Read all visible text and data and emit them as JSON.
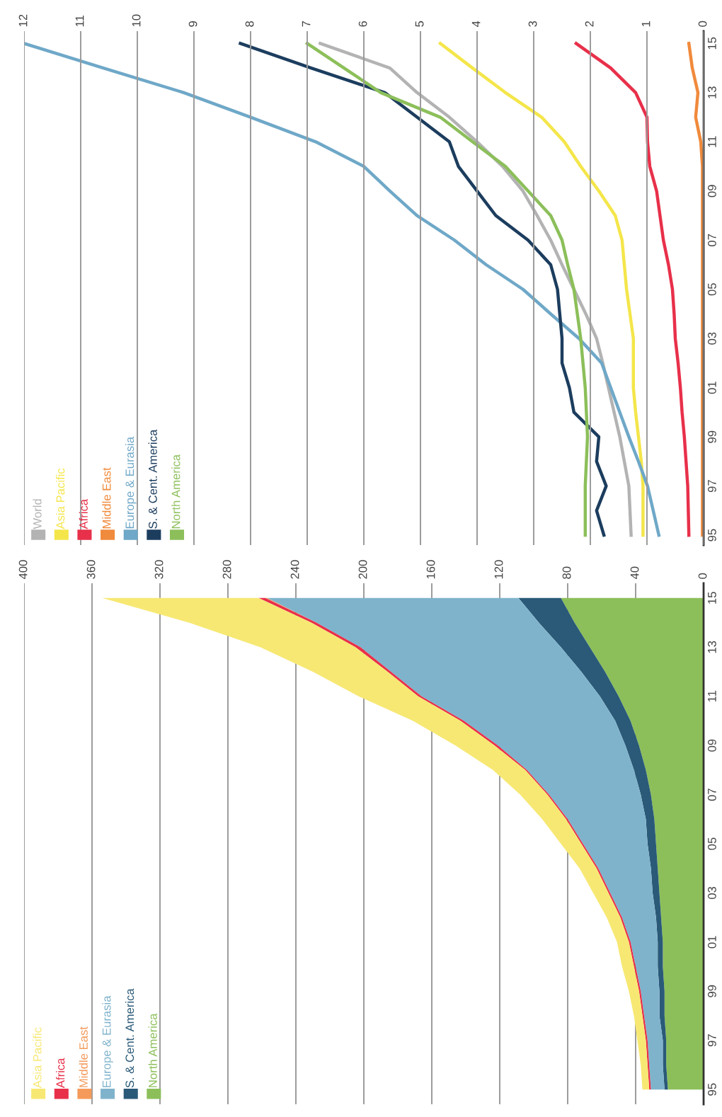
{
  "chart_data": [
    {
      "type": "area",
      "orientation": "horizontal",
      "stacked": true,
      "legend": "bottom left",
      "grid": "x",
      "x": [
        1995,
        1996,
        1997,
        1998,
        1999,
        2000,
        2001,
        2002,
        2003,
        2004,
        2005,
        2006,
        2007,
        2008,
        2009,
        2010,
        2011,
        2012,
        2013,
        2014,
        2015
      ],
      "xlim": [
        400,
        0
      ],
      "xticks": [
        0,
        40,
        80,
        120,
        160,
        200,
        240,
        280,
        320,
        360,
        400
      ],
      "ylim": [
        1994.4,
        2015.6
      ],
      "yticks": [
        {
          "value": 1995,
          "label": "95"
        },
        {
          "value": 1997,
          "label": "97"
        },
        {
          "value": 1999,
          "label": "99"
        },
        {
          "value": 2001,
          "label": "01"
        },
        {
          "value": 2003,
          "label": "03"
        },
        {
          "value": 2005,
          "label": "05"
        },
        {
          "value": 2007,
          "label": "07"
        },
        {
          "value": 2009,
          "label": "09"
        },
        {
          "value": 2011,
          "label": "11"
        },
        {
          "value": 2013,
          "label": "13"
        },
        {
          "value": 2015,
          "label": "15"
        }
      ],
      "series": [
        {
          "name": "North America",
          "color": "#8cbf5a",
          "values": [
            21,
            22,
            22,
            23,
            23,
            24,
            24,
            25,
            26,
            27,
            28,
            29,
            31,
            34,
            38,
            43,
            50,
            58,
            67,
            76,
            84
          ]
        },
        {
          "name": "S. & Cent. America",
          "color": "#2a5a78",
          "values": [
            2,
            2,
            2,
            3,
            3,
            3,
            3,
            3,
            4,
            4,
            5,
            5,
            6,
            7,
            8,
            9,
            11,
            14,
            17,
            21,
            25
          ]
        },
        {
          "name": "Europe & Eurasia",
          "color": "#7fb3cc",
          "values": [
            8,
            8,
            9,
            9,
            11,
            13,
            16,
            20,
            25,
            31,
            38,
            46,
            54,
            63,
            75,
            89,
            105,
            112,
            118,
            131,
            148
          ]
        },
        {
          "name": "Middle East",
          "color": "#f59a5a",
          "values": [
            0,
            0,
            0,
            0,
            0,
            0,
            0,
            0,
            0,
            0,
            0,
            0,
            0,
            0,
            0,
            0,
            0,
            0,
            0,
            0,
            1
          ]
        },
        {
          "name": "Africa",
          "color": "#e8304a",
          "values": [
            1,
            1,
            1,
            1,
            1,
            1,
            1,
            1,
            1,
            1,
            1,
            1,
            1,
            1,
            2,
            2,
            2,
            2,
            3,
            3,
            4
          ]
        },
        {
          "name": "Asia Pacific",
          "color": "#f7e873",
          "values": [
            4,
            4,
            5,
            5,
            6,
            7,
            7,
            8,
            9,
            10,
            12,
            14,
            16,
            19,
            23,
            28,
            35,
            44,
            56,
            72,
            92
          ]
        }
      ]
    },
    {
      "type": "line",
      "orientation": "horizontal",
      "legend": "bottom left",
      "grid": "x",
      "x": [
        1995,
        1996,
        1997,
        1998,
        1999,
        2000,
        2001,
        2002,
        2003,
        2004,
        2005,
        2006,
        2007,
        2008,
        2009,
        2010,
        2011,
        2012,
        2013,
        2014,
        2015
      ],
      "xlim": [
        12,
        0
      ],
      "xticks": [
        0,
        1,
        2,
        3,
        4,
        5,
        6,
        7,
        8,
        9,
        10,
        11,
        12
      ],
      "ylim": [
        1994.6,
        2015.5
      ],
      "yticks": [
        {
          "value": 1995,
          "label": "95"
        },
        {
          "value": 1997,
          "label": "97"
        },
        {
          "value": 1999,
          "label": "99"
        },
        {
          "value": 2001,
          "label": "01"
        },
        {
          "value": 2003,
          "label": "03"
        },
        {
          "value": 2005,
          "label": "05"
        },
        {
          "value": 2007,
          "label": "07"
        },
        {
          "value": 2009,
          "label": "09"
        },
        {
          "value": 2011,
          "label": "11"
        },
        {
          "value": 2013,
          "label": "13"
        },
        {
          "value": 2015,
          "label": "15"
        }
      ],
      "series": [
        {
          "name": "World",
          "color": "#b3b3b3",
          "values": [
            1.28,
            1.3,
            1.32,
            1.4,
            1.48,
            1.58,
            1.68,
            1.78,
            1.89,
            2.08,
            2.29,
            2.5,
            2.7,
            2.94,
            3.19,
            3.55,
            4.0,
            4.49,
            5.06,
            5.54,
            6.77
          ]
        },
        {
          "name": "Asia Pacific",
          "color": "#f4e64a",
          "values": [
            1.07,
            1.07,
            1.07,
            1.1,
            1.15,
            1.2,
            1.24,
            1.24,
            1.24,
            1.3,
            1.36,
            1.4,
            1.44,
            1.56,
            1.85,
            2.17,
            2.46,
            2.86,
            3.5,
            4.08,
            4.65
          ]
        },
        {
          "name": "Africa",
          "color": "#e8304a",
          "values": [
            0.26,
            0.27,
            0.28,
            0.31,
            0.34,
            0.38,
            0.41,
            0.45,
            0.5,
            0.52,
            0.55,
            0.62,
            0.71,
            0.77,
            0.83,
            0.95,
            0.99,
            1.0,
            1.2,
            1.64,
            2.25
          ]
        },
        {
          "name": "Middle East",
          "color": "#f08a3c",
          "values": [
            0.02,
            0.02,
            0.02,
            0.02,
            0.02,
            0.02,
            0.02,
            0.02,
            0.02,
            0.02,
            0.02,
            0.02,
            0.02,
            0.02,
            0.02,
            0.02,
            0.05,
            0.14,
            0.1,
            0.2,
            0.26
          ]
        },
        {
          "name": "Europe & Eurasia",
          "color": "#6fa8c8",
          "values": [
            0.79,
            0.89,
            0.99,
            1.15,
            1.32,
            1.48,
            1.64,
            1.8,
            2.2,
            2.7,
            3.19,
            3.84,
            4.4,
            5.06,
            5.54,
            6.0,
            6.85,
            8.0,
            9.18,
            10.6,
            12.0
          ]
        },
        {
          "name": "S. & Cent. America",
          "color": "#1c3d5e",
          "values": [
            1.76,
            1.89,
            1.72,
            1.89,
            1.85,
            2.29,
            2.37,
            2.5,
            2.5,
            2.54,
            2.58,
            2.7,
            3.1,
            3.67,
            4.0,
            4.33,
            4.49,
            5.06,
            5.63,
            6.93,
            8.18
          ]
        },
        {
          "name": "North America",
          "color": "#8cbf5a",
          "values": [
            2.09,
            2.09,
            2.09,
            2.07,
            2.05,
            2.07,
            2.09,
            2.13,
            2.17,
            2.23,
            2.29,
            2.4,
            2.5,
            2.7,
            3.1,
            3.5,
            4.08,
            4.65,
            5.7,
            6.35,
            7.0
          ]
        }
      ]
    }
  ]
}
